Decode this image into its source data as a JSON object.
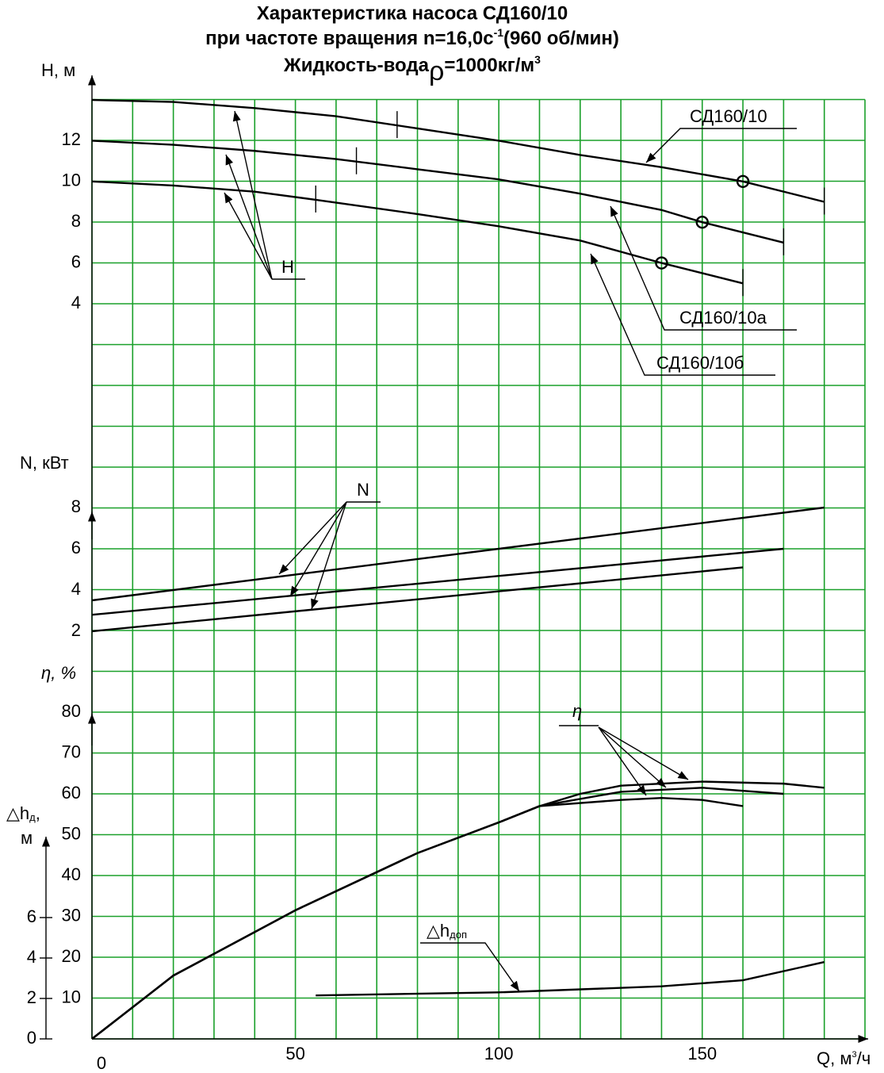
{
  "chart_data": {
    "type": "line",
    "title": {
      "line1": "Характеристика насоса СД160/10",
      "line2": [
        "при частоте вращения n=16,0с",
        "-1",
        "(960 об/мин)"
      ],
      "line3": [
        "Жидкость-вода",
        "ρ",
        "=1000кг/м",
        "3"
      ]
    },
    "x_axis": {
      "label": [
        "Q, м",
        "3",
        "/ч"
      ],
      "lim": [
        0,
        190
      ],
      "ticks": [
        0,
        50,
        100,
        150
      ],
      "grid": [
        0,
        10,
        20,
        30,
        40,
        50,
        60,
        70,
        80,
        90,
        100,
        110,
        120,
        130,
        140,
        150,
        160,
        170,
        180,
        190
      ]
    },
    "axes": {
      "H": {
        "label": "H, м",
        "lim": [
          4,
          14
        ],
        "ticks": [
          4,
          6,
          8,
          10,
          12
        ]
      },
      "N": {
        "label": "N, кВт",
        "lim": [
          2,
          8
        ],
        "ticks": [
          2,
          4,
          6,
          8
        ]
      },
      "eta": {
        "label": "η, %",
        "lim": [
          0,
          80
        ],
        "ticks": [
          10,
          20,
          30,
          40,
          50,
          60,
          70,
          80
        ]
      },
      "dh": {
        "label": [
          "△h",
          "д",
          ","
        ],
        "unit": "м",
        "lim": [
          0,
          6
        ],
        "ticks": [
          0,
          2,
          4,
          6
        ]
      }
    },
    "hgrid": [
      0,
      10,
      20,
      30,
      40,
      50,
      60,
      70,
      80,
      90,
      100,
      110,
      120,
      130,
      140,
      150,
      160,
      170,
      180,
      190,
      200,
      210,
      220,
      230
    ],
    "grid_color": "#1aa02a",
    "series": [
      {
        "name": "СД160/10",
        "color": "#000000",
        "axis": "H",
        "x": [
          0,
          20,
          40,
          60,
          80,
          100,
          120,
          140,
          160,
          180
        ],
        "values": [
          14,
          13.9,
          13.6,
          13.2,
          12.6,
          12.0,
          11.3,
          10.7,
          10.0,
          9.0
        ],
        "limits": [
          75,
          180
        ],
        "nominal": [
          160,
          10
        ]
      },
      {
        "name": "СД160/10а",
        "color": "#000000",
        "axis": "H",
        "x": [
          0,
          20,
          40,
          60,
          80,
          100,
          120,
          140,
          150,
          170
        ],
        "values": [
          12,
          11.8,
          11.5,
          11.1,
          10.6,
          10.1,
          9.4,
          8.6,
          8.0,
          7.0
        ],
        "limits": [
          65,
          170
        ],
        "nominal": [
          150,
          8
        ]
      },
      {
        "name": "СД160/10б",
        "color": "#000000",
        "axis": "H",
        "x": [
          0,
          20,
          40,
          55,
          80,
          100,
          120,
          140,
          160
        ],
        "values": [
          10,
          9.8,
          9.5,
          9.1,
          8.4,
          7.8,
          7.1,
          6.0,
          5.0
        ],
        "limits": [
          55,
          160
        ],
        "nominal": [
          140,
          6
        ]
      },
      {
        "color": "#000000",
        "axis": "N",
        "x": [
          0,
          180
        ],
        "values": [
          3.5,
          8
        ]
      },
      {
        "color": "#000000",
        "axis": "N",
        "x": [
          0,
          170
        ],
        "values": [
          2.8,
          6
        ]
      },
      {
        "color": "#000000",
        "axis": "N",
        "x": [
          0,
          160
        ],
        "values": [
          2,
          5.1
        ]
      },
      {
        "color": "#000000",
        "axis": "eta",
        "x": [
          0,
          20,
          50,
          80,
          100,
          110,
          120,
          130,
          150,
          170,
          180
        ],
        "values": [
          0,
          15.5,
          31.5,
          45.5,
          53,
          57,
          60,
          62,
          63,
          62.5,
          61.5
        ]
      },
      {
        "color": "#000000",
        "axis": "eta",
        "x": [
          0,
          20,
          50,
          80,
          100,
          110,
          130,
          150,
          170
        ],
        "values": [
          0,
          15.5,
          31.5,
          45.5,
          53,
          57,
          60.5,
          61.5,
          60
        ]
      },
      {
        "color": "#000000",
        "axis": "eta",
        "x": [
          0,
          20,
          50,
          80,
          100,
          110,
          130,
          140,
          150,
          160
        ],
        "values": [
          0,
          15.5,
          31.5,
          45.5,
          53,
          57,
          58.5,
          59,
          58.5,
          57
        ]
      },
      {
        "color": "#000000",
        "axis": "dh",
        "x": [
          55,
          100,
          140,
          160,
          180
        ],
        "values": [
          2.15,
          2.3,
          2.6,
          2.9,
          3.8
        ]
      }
    ],
    "annotations": {
      "H": "H",
      "N": "N",
      "eta": "η",
      "dh": [
        "△h",
        "доп"
      ]
    }
  }
}
